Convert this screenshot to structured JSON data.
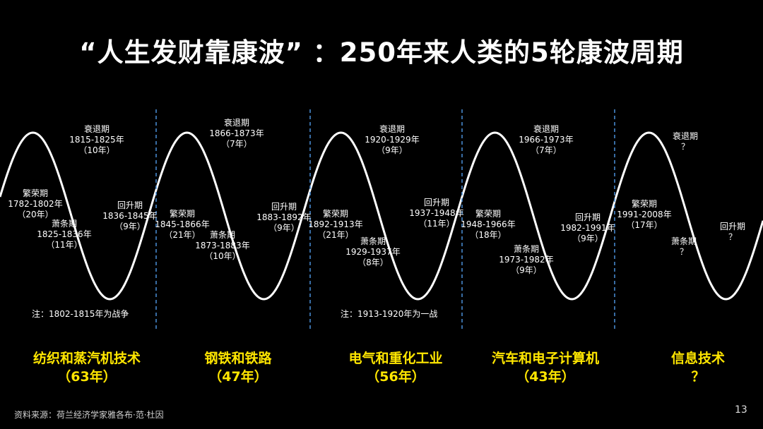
{
  "title": "“人生发财靠康波” ：250年来人类的5轮康波周期",
  "cycles": [
    {
      "era": "纺织和蒸汽机技术",
      "duration": "（63年）",
      "phases": [
        {
          "name": "繁荣期",
          "years": "1782-1802年",
          "length": "（20年）"
        },
        {
          "name": "衰退期",
          "years": "1815-1825年",
          "length": "（10年）"
        },
        {
          "name": "萧条期",
          "years": "1825-1836年",
          "length": "（11年）"
        },
        {
          "name": "回升期",
          "years": "1836-1845年",
          "length": "（9年）"
        }
      ],
      "note": "注：1802-1815年为战争"
    },
    {
      "era": "钢铁和铁路",
      "duration": "（47年）",
      "phases": [
        {
          "name": "繁荣期",
          "years": "1845-1866年",
          "length": "（21年）"
        },
        {
          "name": "衰退期",
          "years": "1866-1873年",
          "length": "（7年）"
        },
        {
          "name": "萧条期",
          "years": "1873-1883年",
          "length": "（10年）"
        },
        {
          "name": "回升期",
          "years": "1883-1892年",
          "length": "（9年）"
        }
      ]
    },
    {
      "era": "电气和重化工业",
      "duration": "（56年）",
      "phases": [
        {
          "name": "繁荣期",
          "years": "1892-1913年",
          "length": "（21年）"
        },
        {
          "name": "衰退期",
          "years": "1920-1929年",
          "length": "（9年）"
        },
        {
          "name": "萧条期",
          "years": "1929-1937年",
          "length": "（8年）"
        },
        {
          "name": "回升期",
          "years": "1937-1948年",
          "length": "（11年）"
        }
      ],
      "note": "注：1913-1920年为一战"
    },
    {
      "era": "汽车和电子计算机",
      "duration": "（43年）",
      "phases": [
        {
          "name": "繁荣期",
          "years": "1948-1966年",
          "length": "（18年）"
        },
        {
          "name": "衰退期",
          "years": "1966-1973年",
          "length": "（7年）"
        },
        {
          "name": "萧条期",
          "years": "1973-1982年",
          "length": "（9年）"
        },
        {
          "name": "回升期",
          "years": "1982-1991年",
          "length": "（9年）"
        }
      ]
    },
    {
      "era": "信息技术",
      "duration": "？",
      "phases": [
        {
          "name": "繁荣期",
          "years": "1991-2008年",
          "length": "（17年）"
        },
        {
          "name": "衰退期",
          "years": "？",
          "length": ""
        },
        {
          "name": "萧条期",
          "years": "？",
          "length": ""
        },
        {
          "name": "回升期",
          "years": "？",
          "length": ""
        }
      ]
    }
  ],
  "footer": "资料来源：荷兰经济学家雅各布·范·杜因",
  "page_number": "13",
  "colors": {
    "background": "#000000",
    "curve": "#ffffff",
    "era_text": "#ffe600",
    "divider": "#4a90d9"
  }
}
